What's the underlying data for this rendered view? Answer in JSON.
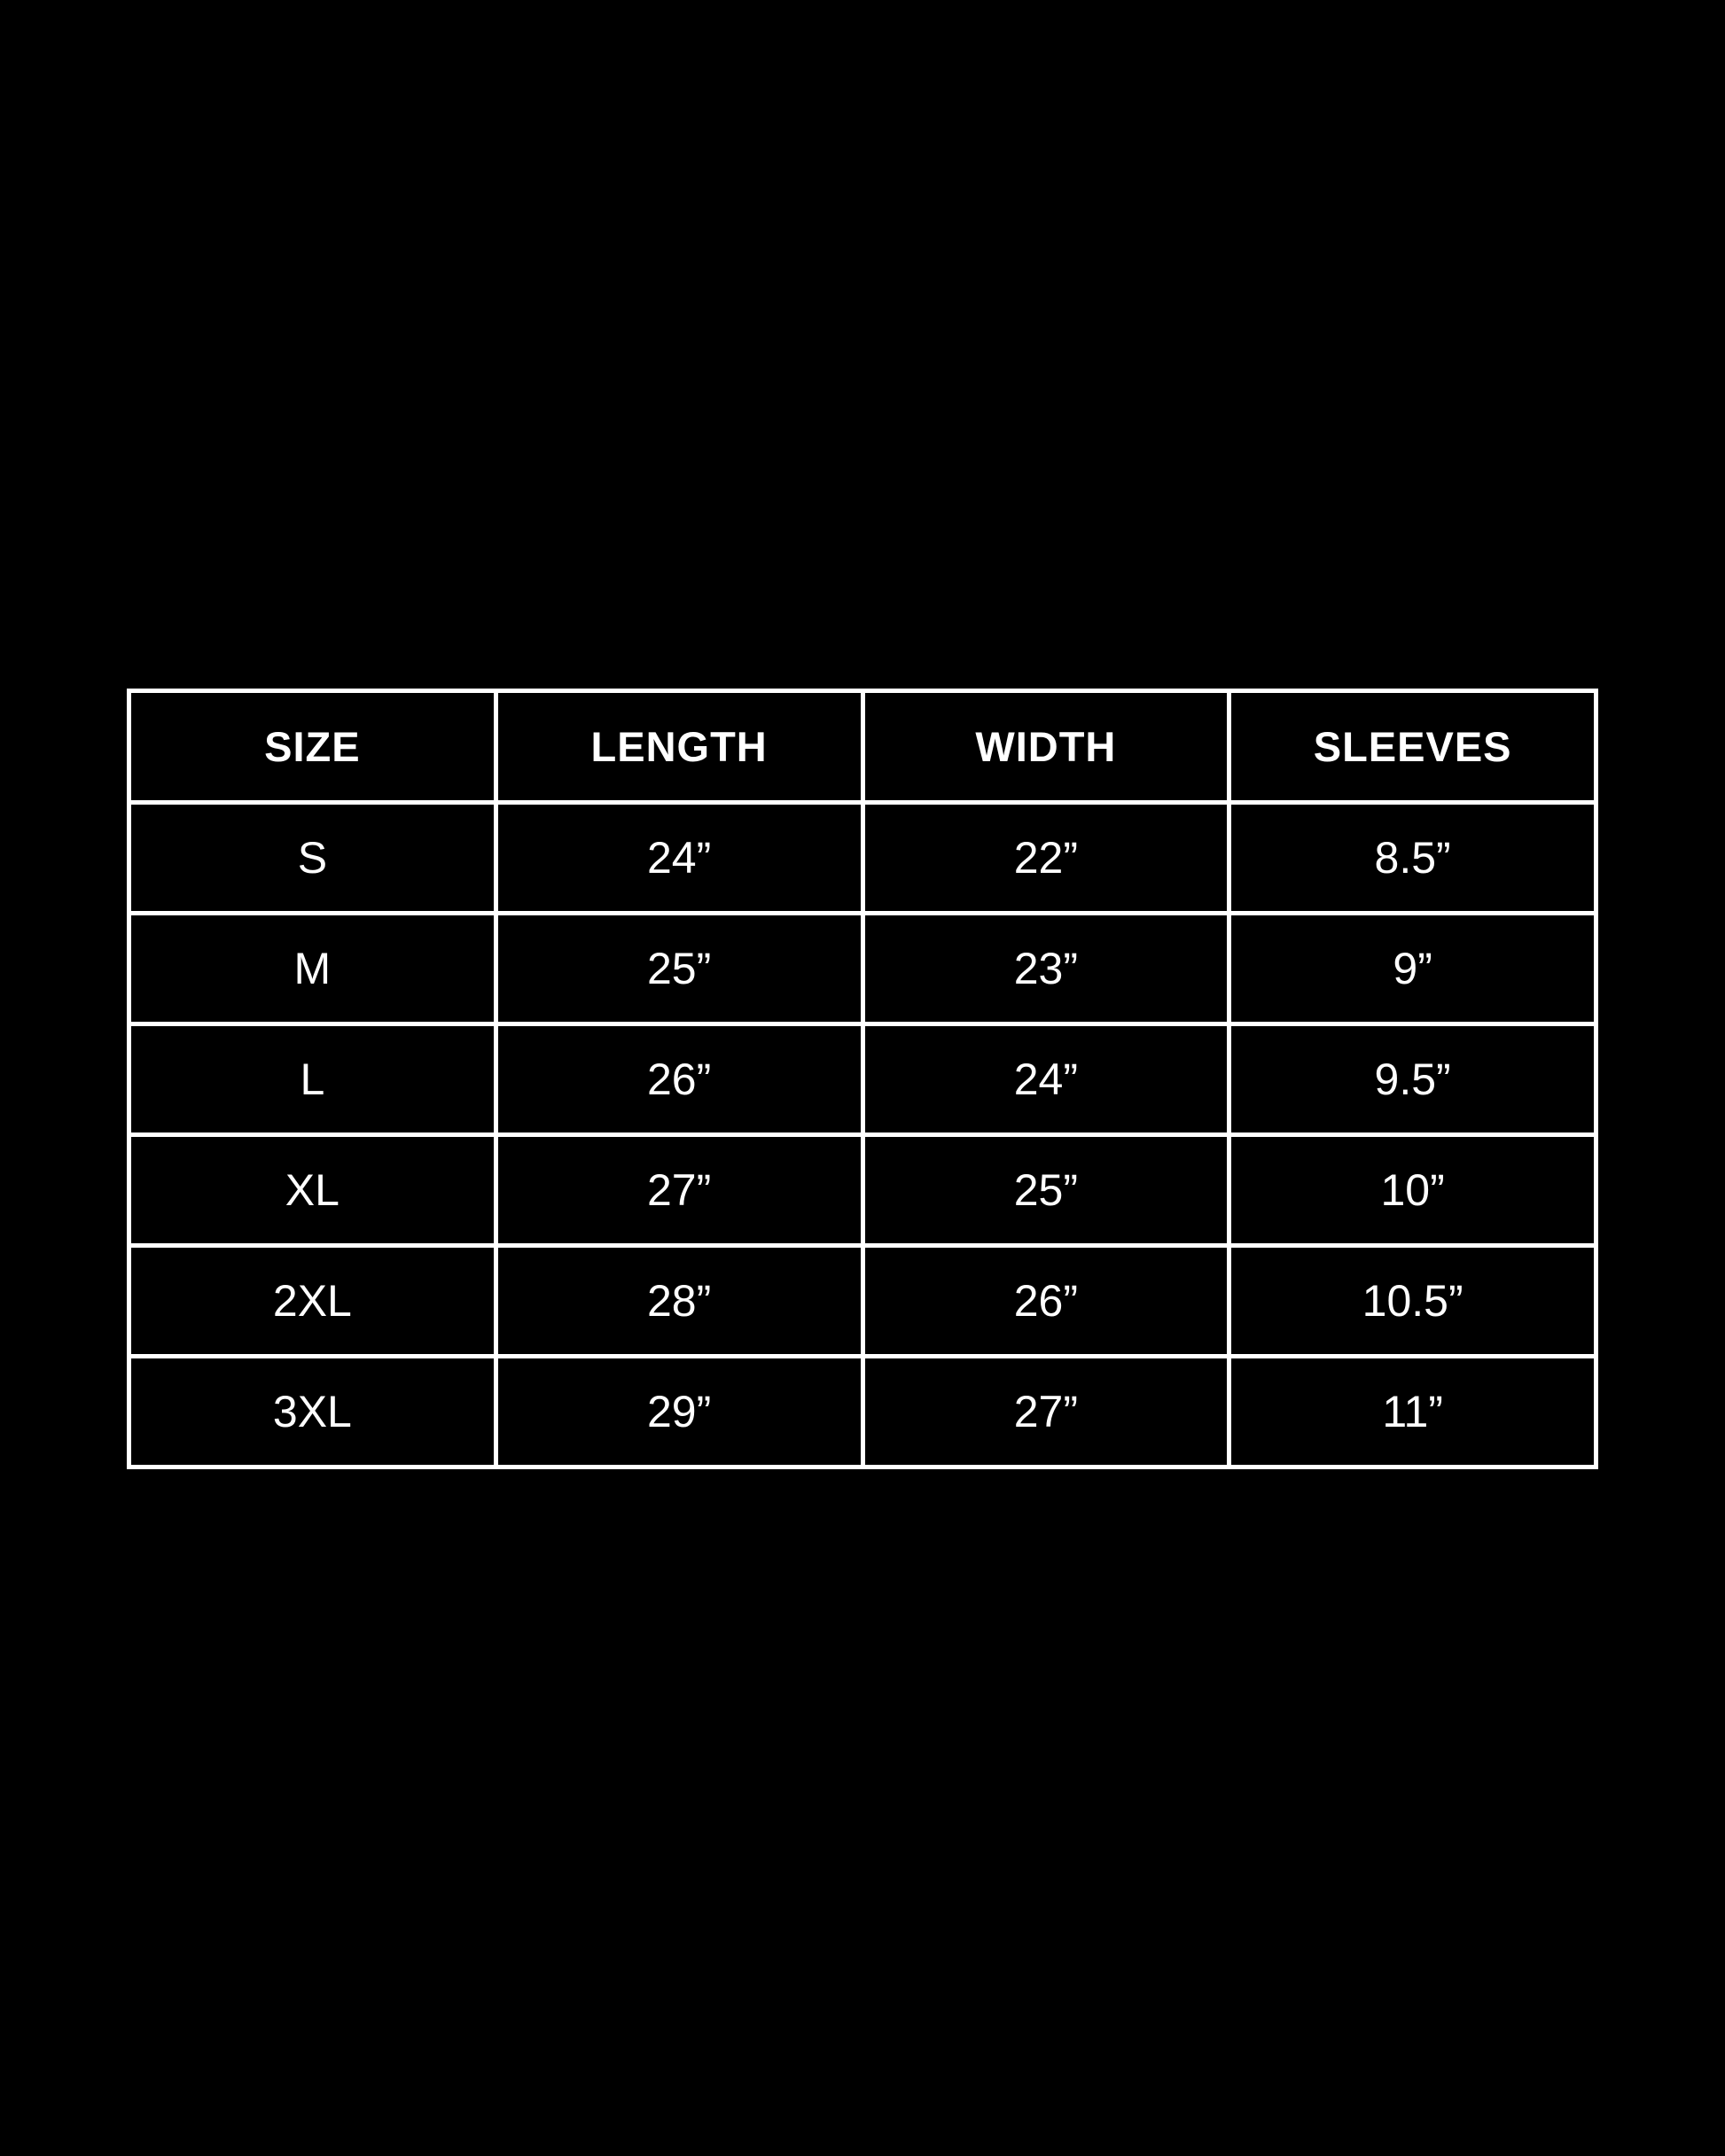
{
  "colors": {
    "background": "#000000",
    "border": "#ffffff",
    "text": "#ffffff"
  },
  "size_chart": {
    "columns": [
      "SIZE",
      "LENGTH",
      "WIDTH",
      "SLEEVES"
    ],
    "rows": [
      [
        "S",
        "24”",
        "22”",
        "8.5”"
      ],
      [
        "M",
        "25”",
        "23”",
        "9”"
      ],
      [
        "L",
        "26”",
        "24”",
        "9.5”"
      ],
      [
        "XL",
        "27”",
        "25”",
        "10”"
      ],
      [
        "2XL",
        "28”",
        "26”",
        "10.5”"
      ],
      [
        "3XL",
        "29”",
        "27”",
        "11”"
      ]
    ]
  }
}
